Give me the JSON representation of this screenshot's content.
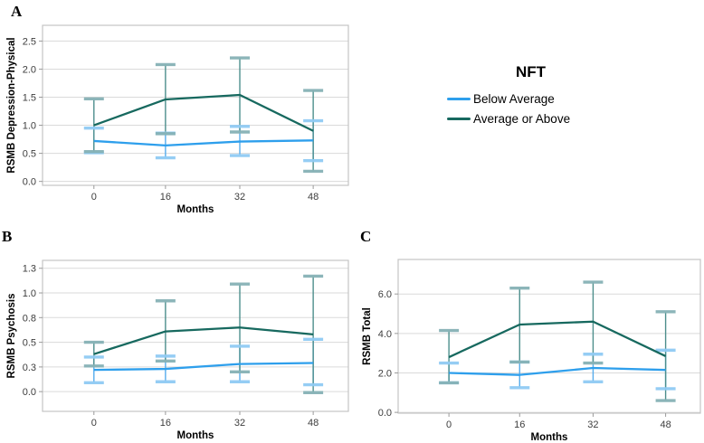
{
  "legend": {
    "title": "NFT",
    "items": [
      {
        "label": "Below Average",
        "color": "#2E9FEC"
      },
      {
        "label": "Average or Above",
        "color": "#17695F"
      }
    ]
  },
  "chart_data": [
    {
      "type": "line",
      "panel_label": "A",
      "ylabel": "RSMB Depression-Physical",
      "xlabel": "Months",
      "categories": [
        "0",
        "16",
        "32",
        "48"
      ],
      "y_ticks": {
        "values": [
          0,
          0.5,
          1.0,
          1.5,
          2.0,
          2.5
        ],
        "labels": [
          "0.0",
          "0.5",
          "1.0",
          "1.5",
          "2.0",
          "2.5"
        ]
      },
      "y_domain": [
        -0.07,
        2.78
      ],
      "grid": "horizontal",
      "legend_position": "outside-right",
      "series": [
        {
          "name": "Below Average",
          "color": "#2E9FEC",
          "err_color": "#55ACEC",
          "cap_color": "#90CBF4",
          "means": [
            0.72,
            0.64,
            0.71,
            0.73
          ],
          "ci_low": [
            0.51,
            0.42,
            0.46,
            0.37
          ],
          "ci_high": [
            0.95,
            0.86,
            0.98,
            1.08
          ]
        },
        {
          "name": "Average or Above",
          "color": "#17695F",
          "err_color": "#4D8F8C",
          "cap_color": "#86B2B6",
          "means": [
            1.0,
            1.46,
            1.54,
            0.9
          ],
          "ci_low": [
            0.53,
            0.85,
            0.88,
            0.18
          ],
          "ci_high": [
            1.47,
            2.08,
            2.2,
            1.62
          ]
        }
      ]
    },
    {
      "type": "line",
      "panel_label": "B",
      "ylabel": "RSMB Psychosis",
      "xlabel": "Months",
      "categories": [
        "0",
        "16",
        "32",
        "48"
      ],
      "y_ticks": {
        "values": [
          0,
          0.25,
          0.5,
          0.75,
          1.0,
          1.25
        ],
        "labels": [
          "0.0",
          "0.3",
          "0.5",
          "0.8",
          "1.0",
          "1.3"
        ]
      },
      "y_domain": [
        -0.2,
        1.33
      ],
      "grid": "horizontal",
      "legend_position": "none",
      "series": [
        {
          "name": "Below Average",
          "color": "#2E9FEC",
          "err_color": "#55ACEC",
          "cap_color": "#90CBF4",
          "means": [
            0.22,
            0.23,
            0.28,
            0.29
          ],
          "ci_low": [
            0.09,
            0.1,
            0.1,
            0.07
          ],
          "ci_high": [
            0.35,
            0.36,
            0.46,
            0.53
          ]
        },
        {
          "name": "Average or Above",
          "color": "#17695F",
          "err_color": "#4D8F8C",
          "cap_color": "#86B2B6",
          "means": [
            0.38,
            0.61,
            0.65,
            0.58
          ],
          "ci_low": [
            0.26,
            0.31,
            0.2,
            -0.01
          ],
          "ci_high": [
            0.5,
            0.92,
            1.09,
            1.17
          ]
        }
      ]
    },
    {
      "type": "line",
      "panel_label": "C",
      "ylabel": "RSMB Total",
      "xlabel": "Months",
      "categories": [
        "0",
        "16",
        "32",
        "48"
      ],
      "y_ticks": {
        "values": [
          0,
          2.0,
          4.0,
          6.0
        ],
        "labels": [
          "0.0",
          "2.0",
          "4.0",
          "6.0"
        ]
      },
      "y_domain": [
        -0.04,
        7.75
      ],
      "grid": "horizontal",
      "legend_position": "none",
      "series": [
        {
          "name": "Below Average",
          "color": "#2E9FEC",
          "err_color": "#55ACEC",
          "cap_color": "#90CBF4",
          "means": [
            2.0,
            1.9,
            2.25,
            2.15
          ],
          "ci_low": [
            1.5,
            1.25,
            1.55,
            1.2
          ],
          "ci_high": [
            2.5,
            2.55,
            2.95,
            3.15
          ]
        },
        {
          "name": "Average or Above",
          "color": "#17695F",
          "err_color": "#4D8F8C",
          "cap_color": "#86B2B6",
          "means": [
            2.8,
            4.45,
            4.6,
            2.85
          ],
          "ci_low": [
            1.5,
            2.55,
            2.5,
            0.6
          ],
          "ci_high": [
            4.15,
            6.3,
            6.6,
            5.1
          ]
        }
      ]
    }
  ]
}
